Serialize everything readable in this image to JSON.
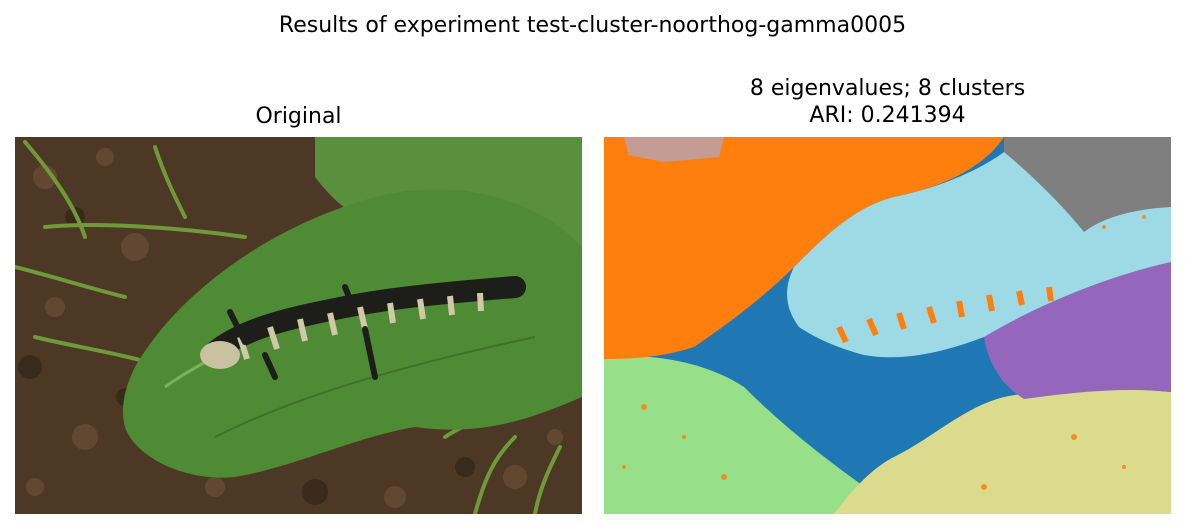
{
  "figure": {
    "suptitle": "Results of experiment test-cluster-noorthog-gamma0005"
  },
  "left_panel": {
    "title": "Original",
    "image": "photo of a spotted salamander on a green leaf over brown soil and grass"
  },
  "right_panel": {
    "title_line1": "8 eigenvalues; 8 clusters",
    "title_line2": "ARI: 0.241394",
    "image": "segmentation map with 8 colored clusters"
  },
  "colors": {
    "cluster_orange": "#ff7f0e",
    "cluster_light_blue": "#9edae5",
    "cluster_blue": "#1f77b4",
    "cluster_purple": "#9467bd",
    "cluster_light_green": "#98df8a",
    "cluster_khaki": "#dbdb8d",
    "cluster_gray": "#7f7f7f",
    "cluster_mauve": "#c49c94"
  }
}
